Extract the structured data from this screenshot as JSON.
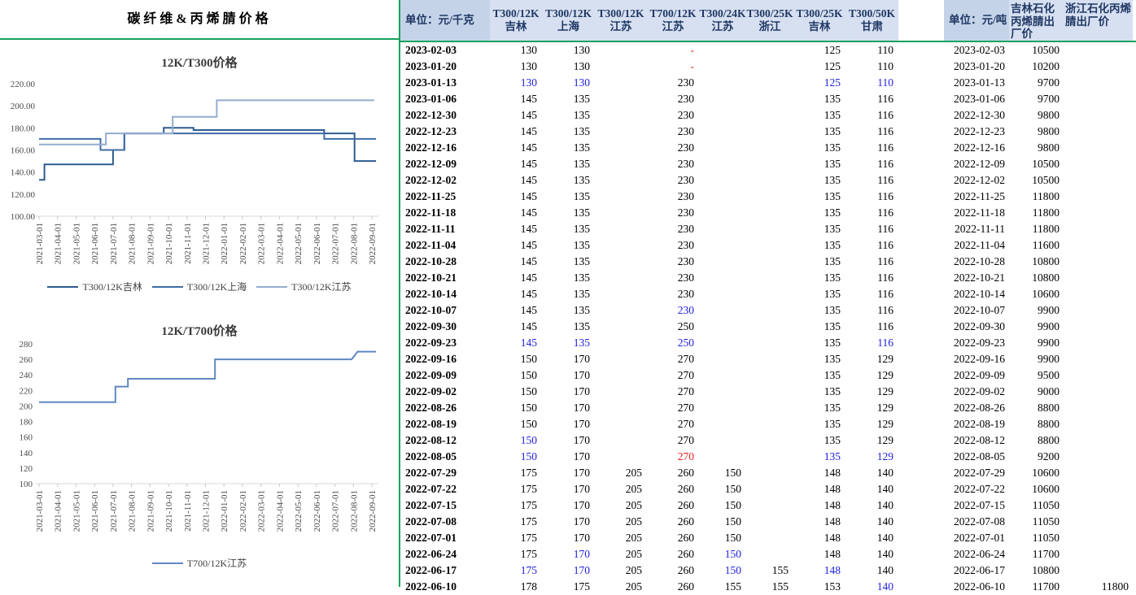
{
  "title": "碳纤维&丙烯腈价格",
  "colors": {
    "green_rule": "#14a35c",
    "header_unit_bg": "#c5d3e9",
    "header_col_bg": "#d7e0f1",
    "header_text": "#203864",
    "blue_value": "#2121db",
    "red_value": "#e02121",
    "axis_text": "#4a4a4a"
  },
  "chart_data": [
    {
      "type": "line",
      "title": "12K/T300价格",
      "ylim": [
        100,
        220
      ],
      "ytick_step": 20,
      "y_ticks": [
        "220.00",
        "200.00",
        "180.00",
        "160.00",
        "140.00",
        "120.00",
        "100.00"
      ],
      "x_labels": [
        "2021-03-01",
        "2021-04-01",
        "2021-05-01",
        "2021-06-01",
        "2021-07-01",
        "2021-08-01",
        "2021-09-01",
        "2021-10-01",
        "2021-11-01",
        "2021-12-01",
        "2022-01-01",
        "2022-02-01",
        "2022-03-01",
        "2022-04-01",
        "2022-05-01",
        "2022-06-01",
        "2022-07-01",
        "2022-08-01",
        "2022-09-01"
      ],
      "legend_position": "bottom",
      "grid": false,
      "series": [
        {
          "name": "T300/12K吉林",
          "color": "#2e5b8f",
          "points": [
            [
              "2021-03-01",
              133
            ],
            [
              "2021-03-10",
              133
            ],
            [
              "2021-03-10",
              147
            ],
            [
              "2021-07-01",
              147
            ],
            [
              "2021-07-01",
              160
            ],
            [
              "2021-07-20",
              160
            ],
            [
              "2021-07-20",
              175
            ],
            [
              "2021-09-24",
              175
            ],
            [
              "2021-09-24",
              180
            ],
            [
              "2021-11-12",
              180
            ],
            [
              "2021-11-12",
              178
            ],
            [
              "2022-06-14",
              178
            ],
            [
              "2022-06-14",
              175
            ],
            [
              "2022-08-03",
              175
            ],
            [
              "2022-08-03",
              150
            ],
            [
              "2022-09-08",
              150
            ]
          ]
        },
        {
          "name": "T300/12K上海",
          "color": "#3f6da5",
          "points": [
            [
              "2021-03-01",
              170
            ],
            [
              "2021-06-11",
              170
            ],
            [
              "2021-06-11",
              160
            ],
            [
              "2021-07-20",
              160
            ],
            [
              "2021-07-20",
              175
            ],
            [
              "2022-06-14",
              175
            ],
            [
              "2022-06-14",
              170
            ],
            [
              "2022-09-08",
              170
            ]
          ]
        },
        {
          "name": "T300/12K江苏",
          "color": "#93accf",
          "points": [
            [
              "2021-03-01",
              165
            ],
            [
              "2021-06-20",
              165
            ],
            [
              "2021-06-20",
              175
            ],
            [
              "2021-10-08",
              175
            ],
            [
              "2021-10-08",
              190
            ],
            [
              "2021-12-20",
              190
            ],
            [
              "2021-12-20",
              205
            ],
            [
              "2022-09-05",
              205
            ]
          ]
        }
      ]
    },
    {
      "type": "line",
      "title": "12K/T700价格",
      "ylim": [
        100,
        280
      ],
      "ytick_step": 20,
      "y_ticks": [
        "280",
        "260",
        "240",
        "220",
        "200",
        "180",
        "160",
        "140",
        "120",
        "100"
      ],
      "x_labels": [
        "2021-03-01",
        "2021-04-01",
        "2021-05-01",
        "2021-06-01",
        "2021-07-01",
        "2021-08-01",
        "2021-09-01",
        "2021-10-01",
        "2021-11-01",
        "2021-12-01",
        "2022-01-01",
        "2022-02-01",
        "2022-03-01",
        "2022-04-01",
        "2022-05-01",
        "2022-06-01",
        "2022-07-01",
        "2022-08-01",
        "2022-09-01"
      ],
      "legend_position": "bottom",
      "grid": false,
      "series": [
        {
          "name": "T700/12K江苏",
          "color": "#5e88c2",
          "points": [
            [
              "2021-03-01",
              205
            ],
            [
              "2021-07-05",
              205
            ],
            [
              "2021-07-05",
              225
            ],
            [
              "2021-07-26",
              225
            ],
            [
              "2021-07-26",
              235
            ],
            [
              "2021-12-17",
              235
            ],
            [
              "2021-12-17",
              260
            ],
            [
              "2022-07-29",
              260
            ],
            [
              "2022-08-08",
              270
            ],
            [
              "2022-09-08",
              270
            ]
          ]
        }
      ]
    }
  ],
  "table": {
    "section1": {
      "unit_header": "单位：元/千克",
      "columns": [
        {
          "line1": "T300/12K",
          "line2": "吉林"
        },
        {
          "line1": "T300/12K",
          "line2": "上海"
        },
        {
          "line1": "T300/12K",
          "line2": "江苏"
        },
        {
          "line1": "T700/12K",
          "line2": "江苏"
        },
        {
          "line1": "T300/24K",
          "line2": "江苏"
        },
        {
          "line1": "T300/25K",
          "line2": "浙江"
        },
        {
          "line1": "T300/25K",
          "line2": "吉林"
        },
        {
          "line1": "T300/50K",
          "line2": "甘肃"
        }
      ]
    },
    "section2": {
      "unit_header": "单位：元/吨",
      "columns": [
        "吉林石化丙烯腈出厂价",
        "浙江石化丙烯腈出厂价"
      ]
    },
    "rows": [
      [
        "2023-02-03",
        "130",
        "130",
        "",
        "r:-",
        "",
        "",
        "125",
        "110",
        "10500",
        ""
      ],
      [
        "2023-01-20",
        "130",
        "130",
        "",
        "r:-",
        "",
        "",
        "125",
        "110",
        "10200",
        ""
      ],
      [
        "2023-01-13",
        "b:130",
        "b:130",
        "",
        "230",
        "",
        "",
        "b:125",
        "b:110",
        "9700",
        ""
      ],
      [
        "2023-01-06",
        "145",
        "135",
        "",
        "230",
        "",
        "",
        "135",
        "116",
        "9700",
        ""
      ],
      [
        "2022-12-30",
        "145",
        "135",
        "",
        "230",
        "",
        "",
        "135",
        "116",
        "9800",
        ""
      ],
      [
        "2022-12-23",
        "145",
        "135",
        "",
        "230",
        "",
        "",
        "135",
        "116",
        "9800",
        ""
      ],
      [
        "2022-12-16",
        "145",
        "135",
        "",
        "230",
        "",
        "",
        "135",
        "116",
        "9800",
        ""
      ],
      [
        "2022-12-09",
        "145",
        "135",
        "",
        "230",
        "",
        "",
        "135",
        "116",
        "10500",
        ""
      ],
      [
        "2022-12-02",
        "145",
        "135",
        "",
        "230",
        "",
        "",
        "135",
        "116",
        "10500",
        ""
      ],
      [
        "2022-11-25",
        "145",
        "135",
        "",
        "230",
        "",
        "",
        "135",
        "116",
        "11800",
        ""
      ],
      [
        "2022-11-18",
        "145",
        "135",
        "",
        "230",
        "",
        "",
        "135",
        "116",
        "11800",
        ""
      ],
      [
        "2022-11-11",
        "145",
        "135",
        "",
        "230",
        "",
        "",
        "135",
        "116",
        "11800",
        ""
      ],
      [
        "2022-11-04",
        "145",
        "135",
        "",
        "230",
        "",
        "",
        "135",
        "116",
        "11600",
        ""
      ],
      [
        "2022-10-28",
        "145",
        "135",
        "",
        "230",
        "",
        "",
        "135",
        "116",
        "10800",
        ""
      ],
      [
        "2022-10-21",
        "145",
        "135",
        "",
        "230",
        "",
        "",
        "135",
        "116",
        "10800",
        ""
      ],
      [
        "2022-10-14",
        "145",
        "135",
        "",
        "230",
        "",
        "",
        "135",
        "116",
        "10600",
        ""
      ],
      [
        "2022-10-07",
        "145",
        "135",
        "",
        "b:230",
        "",
        "",
        "135",
        "116",
        "9900",
        ""
      ],
      [
        "2022-09-30",
        "145",
        "135",
        "",
        "250",
        "",
        "",
        "135",
        "116",
        "9900",
        ""
      ],
      [
        "2022-09-23",
        "b:145",
        "b:135",
        "",
        "b:250",
        "",
        "",
        "135",
        "b:116",
        "9900",
        ""
      ],
      [
        "2022-09-16",
        "150",
        "170",
        "",
        "270",
        "",
        "",
        "135",
        "129",
        "9900",
        ""
      ],
      [
        "2022-09-09",
        "150",
        "170",
        "",
        "270",
        "",
        "",
        "135",
        "129",
        "9500",
        ""
      ],
      [
        "2022-09-02",
        "150",
        "170",
        "",
        "270",
        "",
        "",
        "135",
        "129",
        "9000",
        ""
      ],
      [
        "2022-08-26",
        "150",
        "170",
        "",
        "270",
        "",
        "",
        "135",
        "129",
        "8800",
        ""
      ],
      [
        "2022-08-19",
        "150",
        "170",
        "",
        "270",
        "",
        "",
        "135",
        "129",
        "8800",
        ""
      ],
      [
        "2022-08-12",
        "b:150",
        "170",
        "",
        "270",
        "",
        "",
        "135",
        "129",
        "8800",
        ""
      ],
      [
        "2022-08-05",
        "b:150",
        "170",
        "",
        "r:270",
        "",
        "",
        "b:135",
        "b:129",
        "9200",
        ""
      ],
      [
        "2022-07-29",
        "175",
        "170",
        "205",
        "260",
        "150",
        "",
        "148",
        "140",
        "10600",
        ""
      ],
      [
        "2022-07-22",
        "175",
        "170",
        "205",
        "260",
        "150",
        "",
        "148",
        "140",
        "10600",
        ""
      ],
      [
        "2022-07-15",
        "175",
        "170",
        "205",
        "260",
        "150",
        "",
        "148",
        "140",
        "11050",
        ""
      ],
      [
        "2022-07-08",
        "175",
        "170",
        "205",
        "260",
        "150",
        "",
        "148",
        "140",
        "11050",
        ""
      ],
      [
        "2022-07-01",
        "175",
        "170",
        "205",
        "260",
        "150",
        "",
        "148",
        "140",
        "11050",
        ""
      ],
      [
        "2022-06-24",
        "175",
        "b:170",
        "205",
        "260",
        "b:150",
        "",
        "148",
        "140",
        "11700",
        ""
      ],
      [
        "2022-06-17",
        "b:175",
        "b:170",
        "205",
        "260",
        "b:150",
        "155",
        "b:148",
        "140",
        "10800",
        ""
      ],
      [
        "2022-06-10",
        "178",
        "175",
        "205",
        "260",
        "155",
        "155",
        "153",
        "b:140",
        "11700",
        "11800"
      ]
    ]
  }
}
